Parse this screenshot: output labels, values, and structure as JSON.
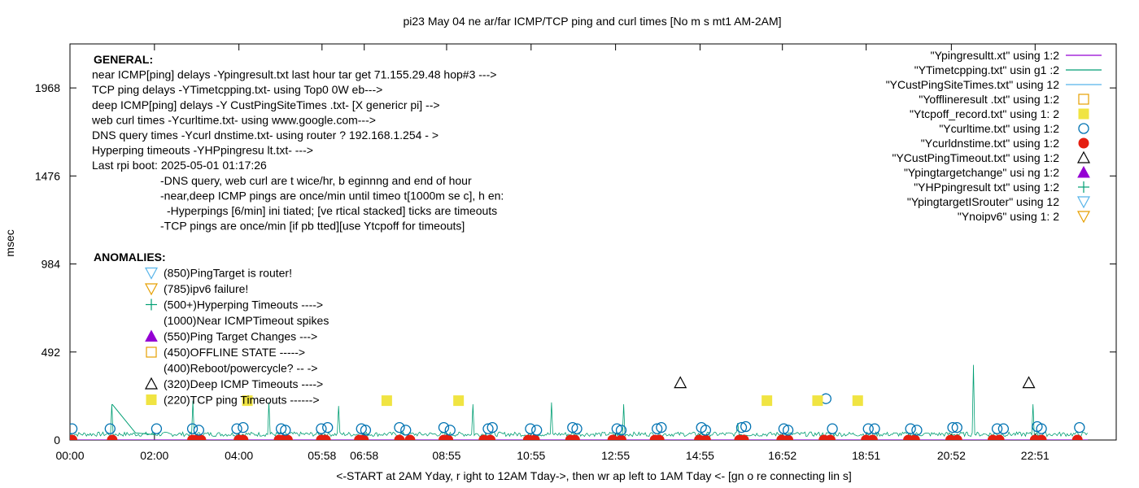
{
  "chart_data": {
    "type": "line",
    "title": "pi23 May 04  ne ar/far ICMP/TCP ping and curl times  [No m s  mt1  AM-2AM]",
    "xlabel": "<-START at 2AM Yday, r ight to 12AM Tday->,  then wr  ap left to 1AM Tday <- [gn  o re connecting lin  s]",
    "ylabel": "msec",
    "ylim": [
      0,
      2214
    ],
    "y_ticks": [
      0,
      492,
      984,
      1476,
      1968
    ],
    "y_tick_labels": [
      "0",
      "492",
      "984",
      "1476",
      "1968"
    ],
    "xlim": [
      0,
      24.77
    ],
    "x_ticks": [
      0,
      2,
      4,
      5.967,
      6.967,
      8.917,
      10.917,
      12.917,
      14.917,
      16.867,
      18.85,
      20.867,
      22.85
    ],
    "x_tick_labels": [
      "00:00",
      "02:00",
      "04:00",
      "05:58",
      "06:58",
      "08:55",
      "10:55",
      "12:55",
      "14:55",
      "16:52",
      "18:51",
      "20:52",
      "22:51"
    ],
    "grid": false,
    "legend_position": "top-right",
    "legend": [
      {
        "label": "\"Ypingresultt.xt\" using 1:2",
        "marker": "line",
        "color": "#9400d3"
      },
      {
        "label": "\"YTimetcpping.txt\" usin g1 :2",
        "marker": "line",
        "color": "#009e73"
      },
      {
        "label": "\"YCustPingSiteTimes.txt\"  using 12",
        "marker": "line",
        "color": "#56b4e9"
      },
      {
        "label": "\"Yofflineresult .txt\" using 1:2",
        "marker": "open-square",
        "color": "#e69f00"
      },
      {
        "label": "\"Ytcpoff_record.txt\" using 1: 2",
        "marker": "filled-square",
        "color": "#f0e442"
      },
      {
        "label": "\"Ycurltime.txt\" using 1:2",
        "marker": "open-circle",
        "color": "#0072b2"
      },
      {
        "label": "\"Ycurldnstime.txt\" using 1:2",
        "marker": "filled-circle",
        "color": "#e51e10"
      },
      {
        "label": "\"YCustPingTimeout.txt\" using 1:2",
        "marker": "open-triangle",
        "color": "#000000"
      },
      {
        "label": "\"Ypingtargetchange\" usi ng  1:2",
        "marker": "filled-triangle",
        "color": "#9400d3"
      },
      {
        "label": "\"YHPpingresult txt\" using 1:2",
        "marker": "plus",
        "color": "#009e73"
      },
      {
        "label": "\"YpingtargetISrouter\" using 12",
        "marker": "open-down-triangle",
        "color": "#56b4e9"
      },
      {
        "label": "\"Ynoipv6\" using 1: 2",
        "marker": "open-down-triangle",
        "color": "#e69f00"
      }
    ],
    "notes_general": [
      {
        "text": "GENERAL:",
        "bold": true,
        "indent": 0
      },
      {
        "text": "near ICMP[ping] delays -Ypingresult.txt last  hour tar get 71.155.29.48 hop#3 --->",
        "bold": false,
        "indent": 0
      },
      {
        "text": "TCP ping delays -YTimetcpping.txt- using  Top0  0W eb--->",
        "bold": false,
        "indent": 0
      },
      {
        "text": "deep ICMP[ping] delays -Y CustPingSiteTimes .txt- [X  genericr pi] -->",
        "bold": false,
        "indent": 0
      },
      {
        "text": "web curl times -Ycurltime.txt- using www.google.com--->",
        "bold": false,
        "indent": 0
      },
      {
        "text": "DNS query times -Ycurl dnstime.txt- using router ? 192.168.1.254 - >",
        "bold": false,
        "indent": 0
      },
      {
        "text": "Hyperping timeouts -YHPpingresu lt.txt- --->",
        "bold": false,
        "indent": 0
      },
      {
        "text": "Last rpi boot: 2025-05-01 01:17:26",
        "bold": false,
        "indent": 0
      },
      {
        "text": "-DNS query, web curl are t wice/hr, b eginnng and end of hour",
        "bold": false,
        "indent": 1
      },
      {
        "text": "-near,deep ICMP pings are once/min until timeo  t[1000m  se c], h en:",
        "bold": false,
        "indent": 1
      },
      {
        "text": "-Hyperpings [6/min] ini tiated; [ve rtical stacked] ticks are timeouts",
        "bold": false,
        "indent": 2
      },
      {
        "text": "-TCP pings are once/min [if pb tted][use Ytcpoff for timeouts]",
        "bold": false,
        "indent": 1
      }
    ],
    "notes_anomalies_title": "ANOMALIES:",
    "notes_anomalies": [
      {
        "marker": "open-down-triangle",
        "color": "#56b4e9",
        "text": "(850)PingTarget is router!"
      },
      {
        "marker": "open-down-triangle",
        "color": "#e69f00",
        "text": "(785)ipv6 failure!"
      },
      {
        "marker": "plus",
        "color": "#009e73",
        "text": "(500+)Hyperping Timeouts ---->"
      },
      {
        "marker": "none",
        "color": "",
        "text": "(1000)Near ICMPTimeout spikes"
      },
      {
        "marker": "filled-triangle",
        "color": "#9400d3",
        "text": "(550)Ping Target Changes --->"
      },
      {
        "marker": "open-square",
        "color": "#e69f00",
        "text": "(450)OFFLINE STATE ----->"
      },
      {
        "marker": "none",
        "color": "",
        "text": "(400)Reboot/powercycle? -- ->"
      },
      {
        "marker": "open-triangle",
        "color": "#000000",
        "text": "(320)Deep ICMP Timeouts ---->"
      },
      {
        "marker": "filled-square",
        "color": "#f0e442",
        "text": "(220)TCP ping Timeouts ------>"
      }
    ],
    "series": [
      {
        "name": "\"Ycurldnstime.txt\" using 1:2",
        "marker": "filled-circle",
        "color": "#e51e10",
        "x": [
          0.05,
          1.0,
          2.9,
          3.0,
          3.1,
          4.0,
          4.1,
          4.95,
          5.05,
          5.15,
          5.95,
          6.05,
          6.85,
          6.95,
          7.8,
          8.05,
          8.85,
          8.95,
          9.8,
          9.95,
          10.85,
          11.0,
          11.85,
          11.95,
          12.85,
          13.05,
          13.85,
          13.95,
          14.9,
          15.05,
          15.85,
          15.95,
          16.85,
          17.0,
          17.85,
          18.0,
          18.85,
          19.0,
          19.85,
          20.0,
          20.85,
          21.0,
          21.85,
          22.0,
          22.85,
          23.0,
          23.85
        ]
      },
      {
        "name": "\"Ycurltime.txt\" using 1:2",
        "marker": "open-circle",
        "color": "#0072b2",
        "x": [
          0.05,
          0.95,
          2.05,
          2.9,
          3.05,
          3.95,
          4.1,
          5.0,
          5.1,
          5.95,
          6.1,
          6.9,
          7.0,
          7.8,
          7.95,
          8.85,
          9.0,
          9.9,
          10.0,
          10.9,
          11.05,
          11.9,
          12.0,
          12.95,
          13.05,
          13.9,
          14.0,
          14.95,
          15.05,
          15.9,
          16.0,
          16.9,
          17.0,
          17.9,
          18.05,
          18.9,
          19.05,
          19.9,
          20.05,
          20.9,
          21.0,
          21.95,
          22.1,
          22.9,
          23.0,
          23.9
        ],
        "y": [
          63,
          63,
          63,
          63,
          55,
          63,
          70,
          63,
          55,
          63,
          70,
          63,
          55,
          70,
          55,
          70,
          55,
          63,
          70,
          63,
          55,
          70,
          63,
          63,
          55,
          63,
          70,
          70,
          55,
          70,
          75,
          63,
          55,
          231,
          63,
          63,
          63,
          63,
          55,
          70,
          70,
          63,
          63,
          75,
          63,
          70
        ]
      },
      {
        "name": "\"YCustPingTimeout.txt\" using 1:2",
        "marker": "open-triangle",
        "color": "#000000",
        "x": [
          14.45,
          22.7
        ],
        "y": [
          320,
          320
        ]
      },
      {
        "name": "\"Ytcpoff_record.txt\" using 1: 2",
        "marker": "filled-square",
        "color": "#f0e442",
        "x": [
          4.2,
          7.5,
          9.2,
          16.5,
          17.7,
          18.65
        ],
        "y": [
          220,
          220,
          220,
          220,
          220,
          220
        ]
      },
      {
        "name": "\"YTimetcpping.txt\" usin g1 :2",
        "marker": "line",
        "color": "#009e73",
        "spikes_x": [
          1.0,
          2.9,
          4.7,
          6.35,
          9.55,
          11.4,
          13.1,
          15.8,
          21.4,
          22.8
        ],
        "spikes_y": [
          200,
          220,
          210,
          190,
          200,
          210,
          200,
          95,
          420,
          200
        ],
        "baseline_msec": 20
      }
    ]
  }
}
